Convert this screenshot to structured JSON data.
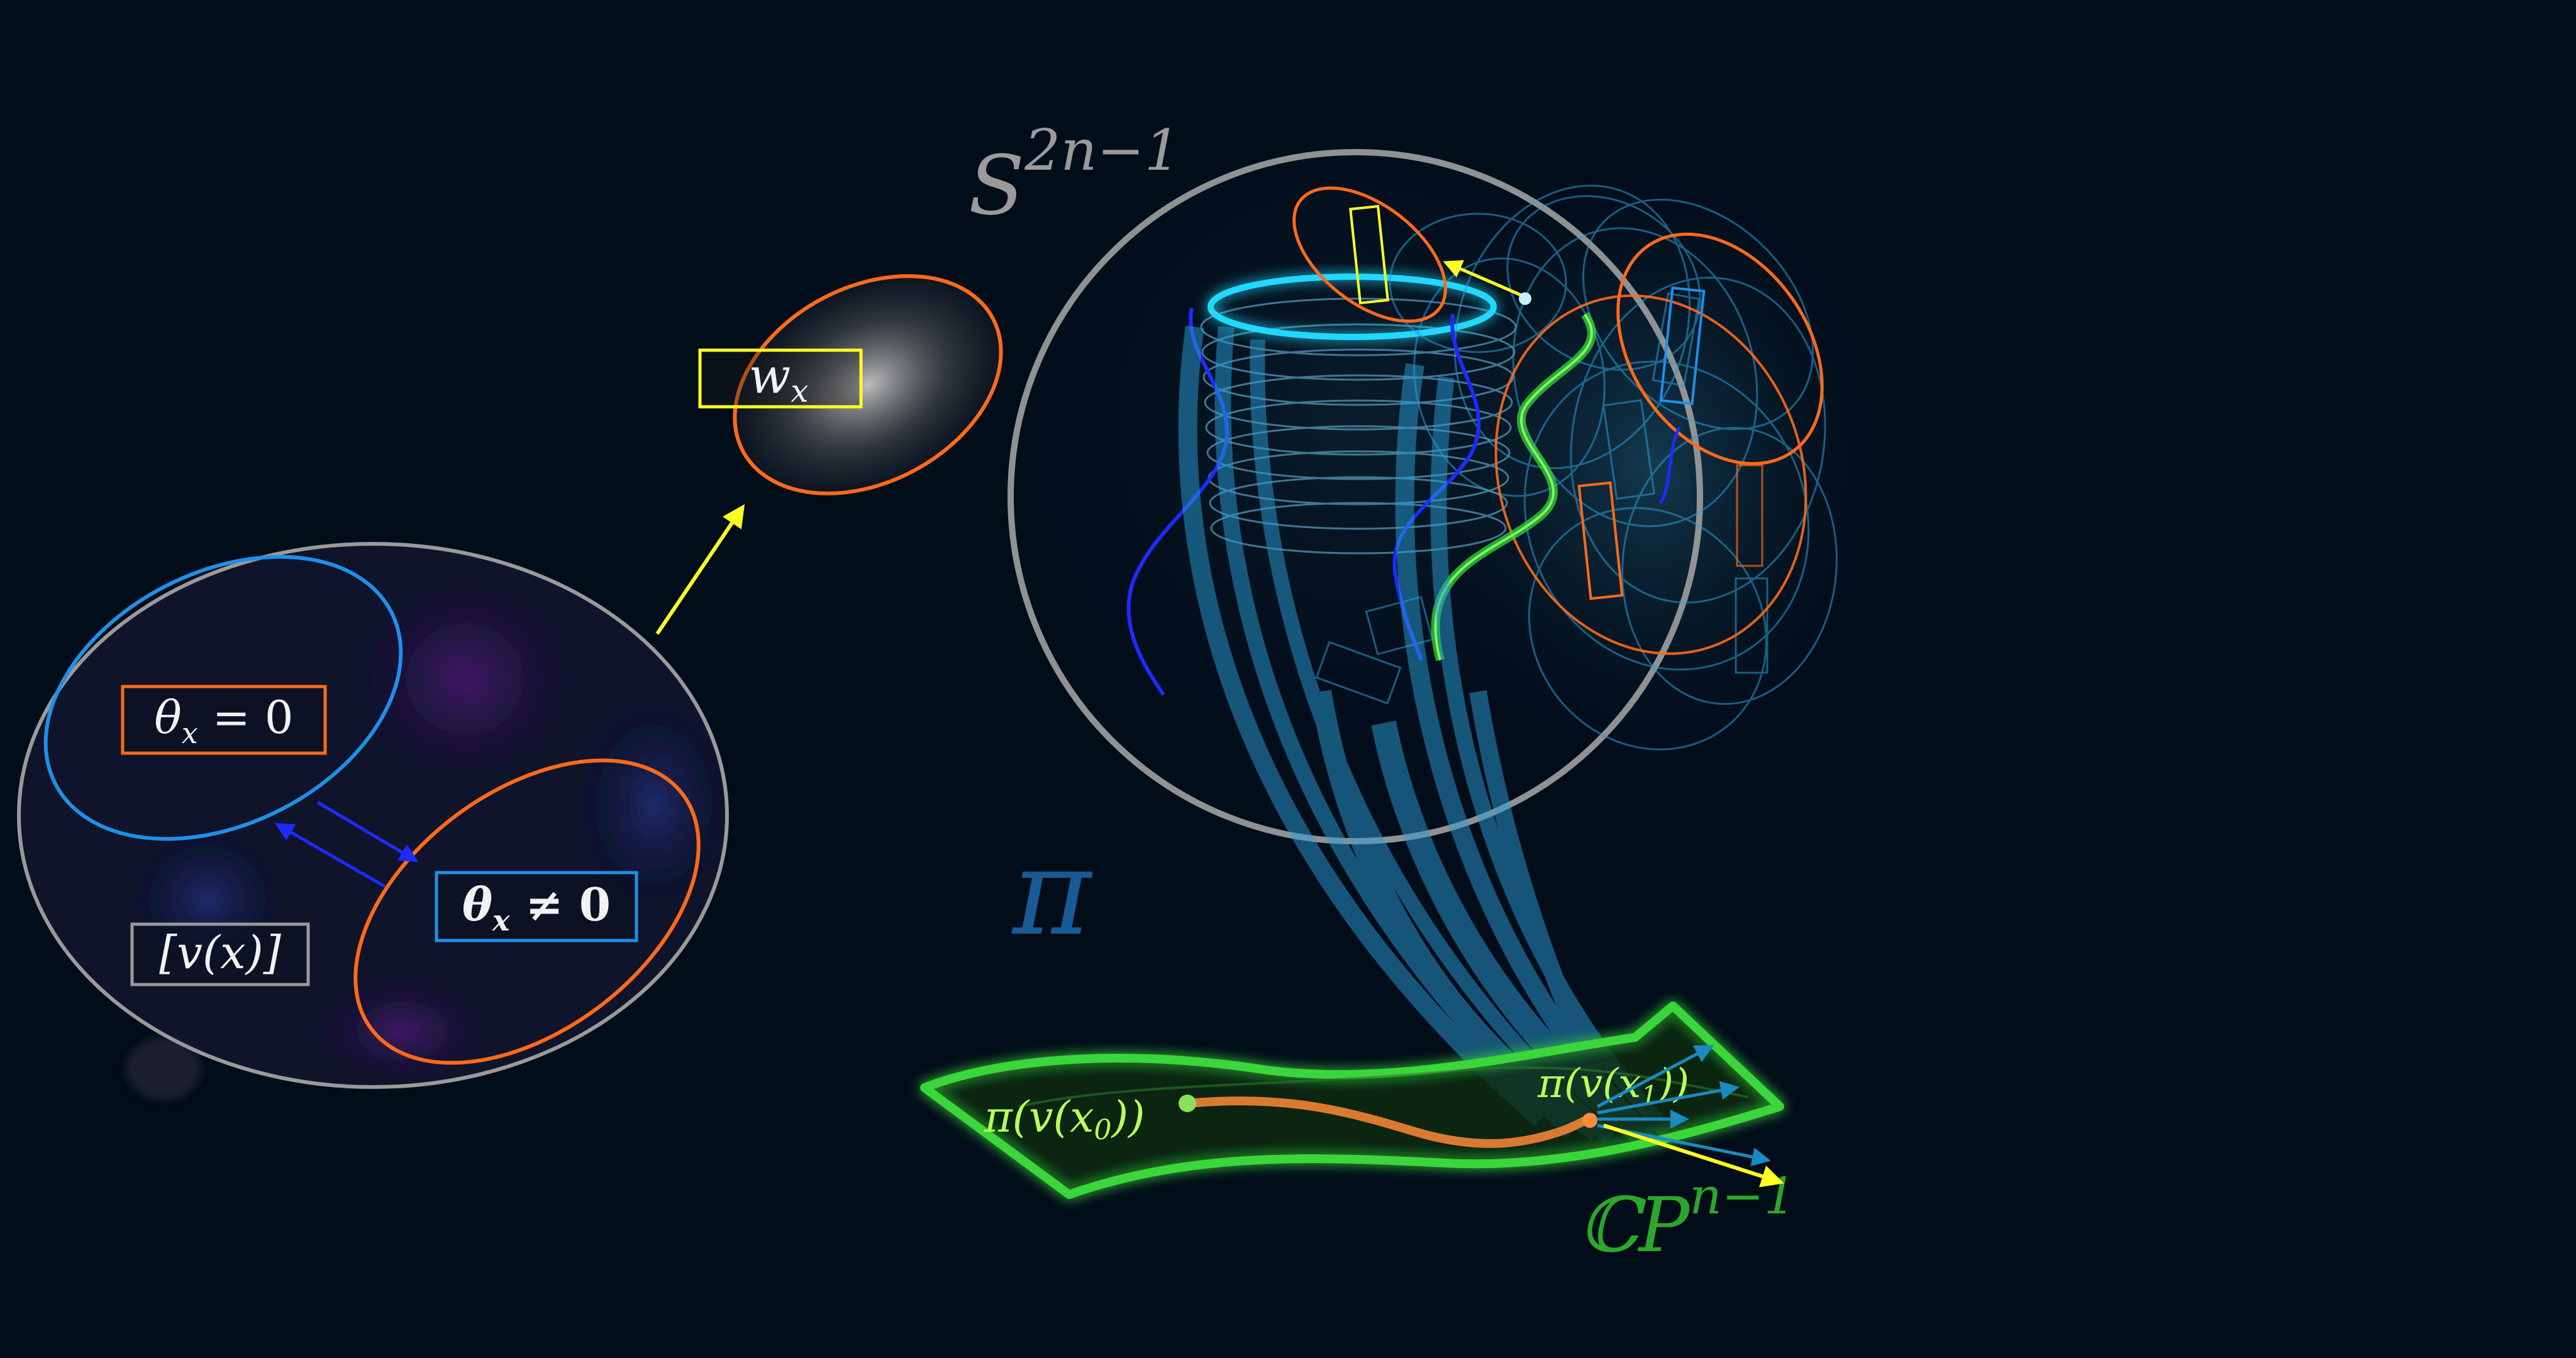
{
  "labels": {
    "sphere": "S",
    "sphere_sup": "2n−1",
    "projection": "π",
    "cp": "ℂP",
    "cp_sup": "n−1",
    "wx": "w",
    "wx_sub": "x",
    "theta_zero": "θ",
    "theta_zero_sub": "x",
    "theta_zero_rest": " = 0",
    "theta_nonzero": "θ",
    "theta_nonzero_sub": "x",
    "theta_nonzero_rest": " ≠ 0",
    "class_v": "[v(x)]",
    "pi_x0": "π(v(x",
    "pi_x0_sub": "0",
    "pi_x0_end": "))",
    "pi_x1": "π(v(x",
    "pi_x1_sub": "1",
    "pi_x1_end": "))"
  },
  "colors": {
    "background": "#020d1a",
    "orange": "#ff6a1a",
    "blue": "#1e90e8",
    "yellow": "#ffff22",
    "white": "#f2f2f2",
    "gray": "#9a9a9a",
    "cyan": "#22d8ff",
    "deep_blue": "#1a2cff",
    "green": "#3ad63a",
    "fiber": "#2a9ed8",
    "pi_label": "#1a5a94",
    "cp_label": "#2ca62c",
    "pi_point_label": "#b8ff5a"
  }
}
